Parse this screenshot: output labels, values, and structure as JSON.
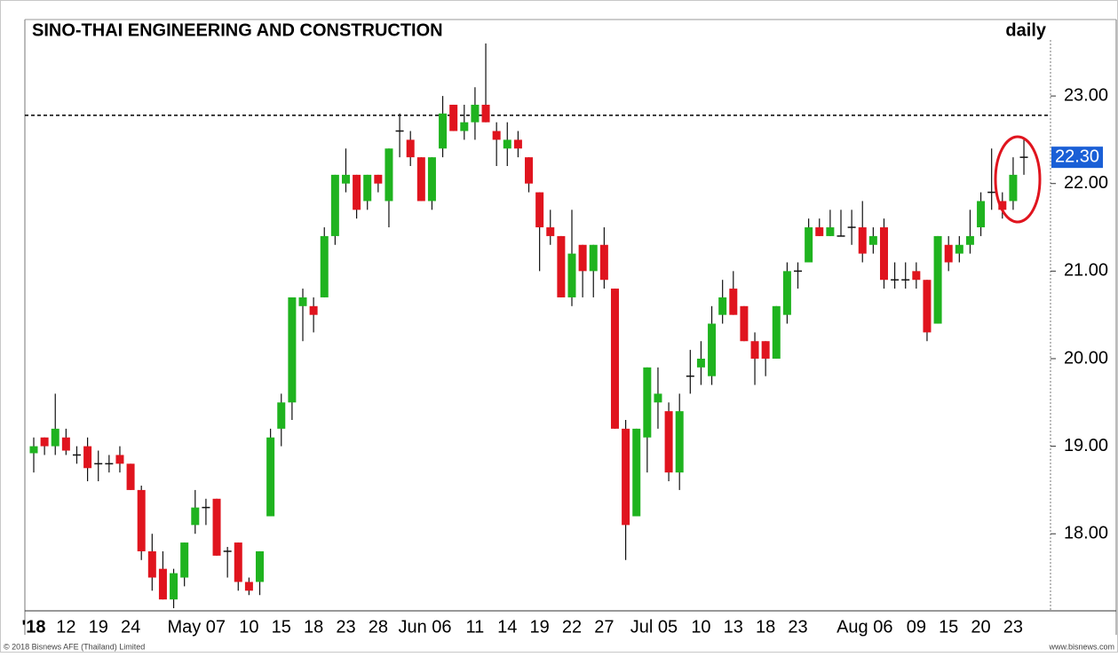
{
  "chart_data": {
    "type": "candlestick",
    "title": "SINO-THAI ENGINEERING AND CONSTRUCTION",
    "interval_label": "daily",
    "footer_left": "© 2018 Bisnews AFE (Thailand) Limited",
    "footer_right": "www.bisnews.com",
    "up_color": "#1fb31f",
    "down_color": "#e0141e",
    "reference_line": 22.78,
    "last_close_label": "22.30",
    "ylim": [
      17.12,
      23.64
    ],
    "yticks": [
      {
        "value": 18,
        "label": "18.00"
      },
      {
        "value": 19,
        "label": "19.00"
      },
      {
        "value": 20,
        "label": "20.00"
      },
      {
        "value": 21,
        "label": "21.00"
      },
      {
        "value": 22,
        "label": "22.00"
      },
      {
        "value": 23,
        "label": "23.00"
      }
    ],
    "categories": [
      "'18",
      null,
      null,
      "12",
      null,
      null,
      "19",
      null,
      null,
      "24",
      null,
      null,
      null,
      null,
      null,
      null,
      null,
      "May 07",
      null,
      null,
      "10",
      null,
      null,
      "15",
      null,
      null,
      "18",
      null,
      null,
      "23",
      null,
      null,
      "28",
      null,
      null,
      null,
      null,
      null,
      "Jun 06",
      null,
      null,
      "11",
      null,
      null,
      "14",
      null,
      null,
      "19",
      null,
      null,
      "22",
      null,
      null,
      "27",
      null,
      null,
      null,
      null,
      null,
      "Jul 05",
      null,
      null,
      "10",
      null,
      null,
      "13",
      null,
      null,
      "18",
      null,
      null,
      "23",
      null,
      null,
      null,
      null,
      null,
      null,
      null,
      "Aug 06",
      null,
      null,
      "09",
      null,
      null,
      "15",
      null,
      null,
      "20",
      null,
      null,
      "23",
      null
    ],
    "open": [
      18.92,
      19.1,
      19.0,
      19.1,
      18.9,
      19.0,
      18.8,
      18.8,
      18.9,
      18.8,
      18.5,
      17.8,
      17.6,
      17.25,
      17.5,
      18.1,
      18.3,
      18.4,
      17.8,
      17.9,
      17.45,
      17.45,
      18.2,
      19.2,
      19.5,
      20.6,
      20.6,
      20.7,
      21.4,
      22.0,
      22.1,
      21.8,
      22.1,
      21.8,
      22.6,
      22.5,
      22.3,
      21.8,
      22.4,
      22.9,
      22.6,
      22.7,
      22.9,
      22.6,
      22.4,
      22.5,
      22.3,
      21.9,
      21.5,
      21.4,
      20.7,
      21.3,
      21.0,
      21.3,
      20.8,
      19.2,
      18.2,
      19.1,
      19.5,
      19.4,
      18.7,
      19.8,
      19.9,
      19.8,
      20.5,
      20.8,
      20.6,
      20.2,
      20.2,
      20.0,
      20.5,
      21.0,
      21.1,
      21.5,
      21.4,
      21.4,
      21.5,
      21.5,
      21.3,
      21.5,
      20.9,
      20.9,
      21.0,
      20.9,
      20.4,
      21.3,
      21.2,
      21.3,
      21.5,
      21.9,
      21.8,
      21.8,
      22.3
    ],
    "high": [
      19.1,
      19.1,
      19.6,
      19.2,
      19.0,
      19.1,
      18.95,
      18.9,
      19.0,
      18.8,
      18.55,
      18.0,
      17.8,
      17.6,
      17.9,
      18.5,
      18.4,
      18.4,
      17.85,
      17.9,
      17.5,
      17.8,
      19.2,
      19.6,
      20.7,
      20.8,
      20.7,
      21.5,
      22.1,
      22.4,
      22.1,
      22.1,
      22.1,
      22.4,
      22.8,
      22.6,
      22.3,
      22.3,
      23.0,
      22.9,
      22.9,
      23.1,
      23.6,
      22.7,
      22.7,
      22.6,
      22.3,
      21.9,
      21.7,
      21.4,
      21.7,
      21.3,
      21.3,
      21.5,
      20.8,
      19.3,
      19.2,
      19.9,
      19.9,
      19.5,
      19.6,
      20.1,
      20.2,
      20.6,
      20.9,
      21.0,
      20.6,
      20.3,
      20.2,
      20.6,
      21.1,
      21.1,
      21.6,
      21.6,
      21.7,
      21.7,
      21.7,
      21.8,
      21.5,
      21.6,
      21.1,
      21.1,
      21.1,
      20.9,
      21.4,
      21.4,
      21.4,
      21.7,
      21.9,
      22.4,
      21.9,
      22.3,
      22.5
    ],
    "low": [
      18.7,
      18.9,
      18.9,
      18.9,
      18.8,
      18.6,
      18.6,
      18.7,
      18.7,
      18.5,
      17.7,
      17.35,
      17.25,
      17.15,
      17.4,
      18.0,
      18.1,
      17.75,
      17.5,
      17.35,
      17.3,
      17.3,
      18.2,
      19.0,
      19.3,
      20.2,
      20.3,
      20.7,
      21.3,
      21.9,
      21.6,
      21.7,
      21.9,
      21.5,
      22.3,
      22.2,
      21.8,
      21.7,
      22.3,
      22.6,
      22.5,
      22.5,
      22.7,
      22.2,
      22.2,
      22.3,
      21.9,
      21.0,
      21.3,
      20.7,
      20.6,
      20.7,
      20.7,
      20.8,
      19.2,
      17.7,
      18.2,
      18.7,
      19.2,
      18.6,
      18.5,
      19.6,
      19.7,
      19.7,
      20.4,
      20.5,
      20.2,
      19.7,
      19.8,
      20.0,
      20.4,
      20.8,
      21.1,
      21.4,
      21.4,
      21.4,
      21.3,
      21.1,
      21.2,
      20.8,
      20.8,
      20.8,
      20.8,
      20.2,
      20.4,
      21.0,
      21.1,
      21.2,
      21.4,
      21.7,
      21.6,
      21.7,
      22.1
    ],
    "close": [
      19.0,
      19.0,
      19.2,
      18.95,
      18.9,
      18.75,
      18.8,
      18.8,
      18.8,
      18.5,
      17.8,
      17.5,
      17.25,
      17.55,
      17.9,
      18.3,
      18.3,
      17.75,
      17.8,
      17.45,
      17.35,
      17.8,
      19.1,
      19.5,
      20.7,
      20.7,
      20.5,
      21.4,
      22.1,
      22.1,
      21.7,
      22.1,
      22.0,
      22.4,
      22.6,
      22.3,
      21.8,
      22.3,
      22.8,
      22.6,
      22.7,
      22.9,
      22.7,
      22.5,
      22.5,
      22.4,
      22.0,
      21.5,
      21.4,
      20.7,
      21.2,
      21.0,
      21.3,
      20.9,
      19.2,
      18.1,
      19.2,
      19.9,
      19.6,
      18.7,
      19.4,
      19.8,
      20.0,
      20.4,
      20.7,
      20.5,
      20.2,
      20.0,
      20.0,
      20.6,
      21.0,
      21.0,
      21.5,
      21.4,
      21.5,
      21.4,
      21.5,
      21.2,
      21.4,
      20.9,
      20.9,
      20.9,
      20.9,
      20.3,
      21.4,
      21.1,
      21.3,
      21.4,
      21.8,
      21.9,
      21.7,
      22.1,
      22.3
    ]
  }
}
